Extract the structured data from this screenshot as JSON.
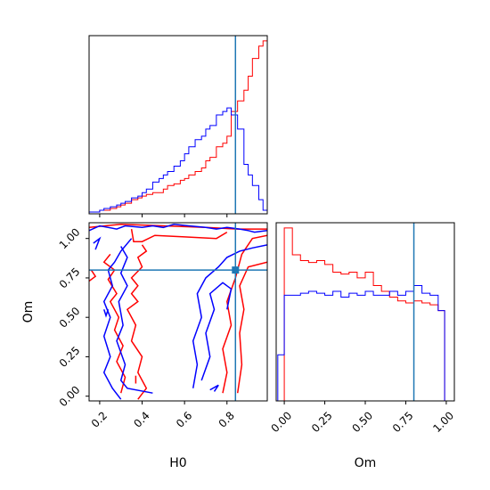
{
  "chart_data": {
    "type": "corner",
    "parameters": [
      "H0",
      "Om"
    ],
    "truth": {
      "H0": 0.84,
      "Om": 0.8
    },
    "colors": {
      "series_a": "#ff0000",
      "series_b": "#0000ff",
      "truth": "#1f77b4"
    },
    "panels": [
      {
        "id": "hist-H0",
        "type": "histogram",
        "xlim": [
          0.15,
          0.99
        ],
        "xticks": [
          0.2,
          0.4,
          0.6,
          0.8
        ],
        "bin_edges": [
          0.15,
          0.18,
          0.2,
          0.22,
          0.25,
          0.28,
          0.3,
          0.32,
          0.35,
          0.38,
          0.4,
          0.42,
          0.45,
          0.48,
          0.5,
          0.52,
          0.55,
          0.58,
          0.6,
          0.62,
          0.65,
          0.68,
          0.7,
          0.72,
          0.75,
          0.78,
          0.8,
          0.82,
          0.85,
          0.88,
          0.9,
          0.92,
          0.95,
          0.97,
          0.99
        ],
        "series": [
          {
            "color_key": "series_a",
            "values": [
              1,
              1,
              2,
              2,
              3,
              4,
              5,
              6,
              8,
              9,
              10,
              11,
              12,
              12,
              14,
              16,
              17,
              19,
              20,
              22,
              24,
              26,
              30,
              32,
              38,
              40,
              44,
              58,
              64,
              70,
              78,
              88,
              95,
              98
            ]
          },
          {
            "color_key": "series_b",
            "values": [
              1,
              1,
              2,
              3,
              4,
              5,
              6,
              7,
              9,
              10,
              12,
              14,
              18,
              20,
              22,
              24,
              27,
              30,
              34,
              38,
              42,
              44,
              48,
              50,
              56,
              58,
              60,
              56,
              48,
              28,
              22,
              16,
              8,
              2
            ]
          }
        ]
      },
      {
        "id": "hist-Om",
        "type": "histogram",
        "xlim": [
          -0.05,
          1.05
        ],
        "xticks": [
          0.0,
          0.25,
          0.5,
          0.75,
          1.0
        ],
        "xtick_labels": [
          "0.00",
          "0.25",
          "0.50",
          "0.75",
          "1.00"
        ],
        "xlabel": "Om",
        "bin_edges": [
          -0.04,
          0.0,
          0.05,
          0.1,
          0.15,
          0.2,
          0.25,
          0.3,
          0.35,
          0.4,
          0.45,
          0.5,
          0.55,
          0.6,
          0.65,
          0.7,
          0.75,
          0.8,
          0.85,
          0.9,
          0.95,
          0.99,
          1.03
        ],
        "series": [
          {
            "color_key": "series_a",
            "values": [
              0,
              90,
              76,
              73,
              72,
              73,
              71,
              67,
              66,
              67,
              64,
              67,
              60,
              57,
              54,
              52,
              51,
              52,
              51,
              50,
              47,
              0
            ]
          },
          {
            "color_key": "series_b",
            "values": [
              24,
              55,
              55,
              56,
              57,
              56,
              55,
              57,
              54,
              56,
              55,
              57,
              55,
              55,
              57,
              55,
              57,
              60,
              56,
              55,
              47,
              0
            ]
          }
        ]
      },
      {
        "id": "contour-H0-Om",
        "type": "contour",
        "xlim": [
          0.15,
          0.99
        ],
        "ylim": [
          -0.03,
          1.1
        ],
        "xticks": [
          0.2,
          0.4,
          0.6,
          0.8
        ],
        "xtick_labels": [
          "0.2",
          "0.4",
          "0.6",
          "0.8"
        ],
        "yticks": [
          0.0,
          0.25,
          0.5,
          0.75,
          1.0
        ],
        "ytick_labels": [
          "0.00",
          "0.25",
          "0.50",
          "0.75",
          "1.00"
        ],
        "xlabel": "H0",
        "ylabel": "Om",
        "series": [
          {
            "color_key": "series_a",
            "contours": [
              [
                [
                  0.15,
                  1.07
                ],
                [
                  0.3,
                  1.09
                ],
                [
                  0.5,
                  1.08
                ],
                [
                  0.7,
                  1.07
                ],
                [
                  0.85,
                  1.06
                ],
                [
                  0.99,
                  1.06
                ]
              ],
              [
                [
                  0.35,
                  1.06
                ],
                [
                  0.36,
                  0.98
                ],
                [
                  0.4,
                  0.98
                ],
                [
                  0.46,
                  1.02
                ],
                [
                  0.6,
                  1.01
                ],
                [
                  0.75,
                  1.0
                ],
                [
                  0.8,
                  1.04
                ]
              ],
              [
                [
                  0.4,
                  0.96
                ],
                [
                  0.42,
                  0.92
                ],
                [
                  0.38,
                  0.88
                ],
                [
                  0.4,
                  0.82
                ],
                [
                  0.35,
                  0.75
                ],
                [
                  0.38,
                  0.7
                ],
                [
                  0.35,
                  0.65
                ],
                [
                  0.38,
                  0.6
                ],
                [
                  0.33,
                  0.55
                ],
                [
                  0.37,
                  0.45
                ],
                [
                  0.35,
                  0.35
                ],
                [
                  0.4,
                  0.25
                ],
                [
                  0.38,
                  0.15
                ],
                [
                  0.42,
                  0.05
                ],
                [
                  0.38,
                  -0.02
                ]
              ],
              [
                [
                  0.25,
                  0.9
                ],
                [
                  0.22,
                  0.85
                ],
                [
                  0.27,
                  0.8
                ],
                [
                  0.24,
                  0.74
                ],
                [
                  0.28,
                  0.65
                ],
                [
                  0.25,
                  0.6
                ],
                [
                  0.29,
                  0.5
                ],
                [
                  0.27,
                  0.42
                ],
                [
                  0.31,
                  0.32
                ],
                [
                  0.28,
                  0.22
                ],
                [
                  0.32,
                  0.12
                ],
                [
                  0.3,
                  0.02
                ]
              ],
              [
                [
                  0.78,
                  0.02
                ],
                [
                  0.8,
                  0.15
                ],
                [
                  0.78,
                  0.3
                ],
                [
                  0.82,
                  0.45
                ],
                [
                  0.8,
                  0.6
                ],
                [
                  0.84,
                  0.75
                ],
                [
                  0.87,
                  0.9
                ],
                [
                  0.92,
                  1.0
                ],
                [
                  0.99,
                  1.02
                ]
              ],
              [
                [
                  0.85,
                  0.02
                ],
                [
                  0.87,
                  0.2
                ],
                [
                  0.86,
                  0.4
                ],
                [
                  0.88,
                  0.55
                ],
                [
                  0.86,
                  0.7
                ],
                [
                  0.9,
                  0.82
                ],
                [
                  0.99,
                  0.85
                ]
              ],
              [
                [
                  0.37,
                  0.13
                ],
                [
                  0.37,
                  0.08
                ]
              ],
              [
                [
                  0.15,
                  0.73
                ],
                [
                  0.18,
                  0.76
                ],
                [
                  0.16,
                  0.8
                ]
              ]
            ]
          },
          {
            "color_key": "series_b",
            "contours": [
              [
                [
                  0.15,
                  1.05
                ],
                [
                  0.2,
                  1.08
                ],
                [
                  0.28,
                  1.06
                ],
                [
                  0.32,
                  1.08
                ],
                [
                  0.4,
                  1.07
                ],
                [
                  0.45,
                  1.08
                ],
                [
                  0.5,
                  1.07
                ],
                [
                  0.55,
                  1.09
                ],
                [
                  0.62,
                  1.08
                ],
                [
                  0.7,
                  1.07
                ],
                [
                  0.75,
                  1.06
                ],
                [
                  0.8,
                  1.07
                ],
                [
                  0.86,
                  1.06
                ],
                [
                  0.9,
                  1.05
                ],
                [
                  0.93,
                  1.04
                ],
                [
                  0.99,
                  1.05
                ]
              ],
              [
                [
                  0.35,
                  1.0
                ],
                [
                  0.3,
                  0.92
                ],
                [
                  0.27,
                  0.85
                ],
                [
                  0.24,
                  0.8
                ],
                [
                  0.26,
                  0.7
                ],
                [
                  0.22,
                  0.6
                ],
                [
                  0.25,
                  0.5
                ],
                [
                  0.22,
                  0.38
                ],
                [
                  0.25,
                  0.25
                ],
                [
                  0.22,
                  0.15
                ],
                [
                  0.26,
                  0.05
                ],
                [
                  0.3,
                  -0.02
                ]
              ],
              [
                [
                  0.3,
                  0.95
                ],
                [
                  0.33,
                  0.88
                ],
                [
                  0.3,
                  0.78
                ],
                [
                  0.33,
                  0.7
                ],
                [
                  0.29,
                  0.6
                ],
                [
                  0.31,
                  0.45
                ],
                [
                  0.28,
                  0.35
                ],
                [
                  0.32,
                  0.2
                ],
                [
                  0.3,
                  0.1
                ],
                [
                  0.33,
                  0.05
                ],
                [
                  0.45,
                  0.02
                ]
              ],
              [
                [
                  0.64,
                  0.05
                ],
                [
                  0.66,
                  0.2
                ],
                [
                  0.64,
                  0.35
                ],
                [
                  0.68,
                  0.5
                ],
                [
                  0.66,
                  0.65
                ],
                [
                  0.7,
                  0.75
                ],
                [
                  0.76,
                  0.82
                ],
                [
                  0.8,
                  0.88
                ],
                [
                  0.86,
                  0.92
                ],
                [
                  0.92,
                  0.94
                ],
                [
                  0.99,
                  0.96
                ]
              ],
              [
                [
                  0.68,
                  0.1
                ],
                [
                  0.72,
                  0.25
                ],
                [
                  0.7,
                  0.4
                ],
                [
                  0.74,
                  0.55
                ],
                [
                  0.72,
                  0.65
                ],
                [
                  0.78,
                  0.72
                ],
                [
                  0.82,
                  0.68
                ],
                [
                  0.8,
                  0.55
                ]
              ],
              [
                [
                  0.72,
                  0.04
                ],
                [
                  0.76,
                  0.07
                ],
                [
                  0.74,
                  0.03
                ]
              ],
              [
                [
                  0.22,
                  0.55
                ],
                [
                  0.23,
                  0.51
                ],
                [
                  0.24,
                  0.55
                ]
              ],
              [
                [
                  0.17,
                  0.97
                ],
                [
                  0.2,
                  1.0
                ],
                [
                  0.18,
                  0.93
                ]
              ]
            ]
          }
        ]
      }
    ]
  }
}
